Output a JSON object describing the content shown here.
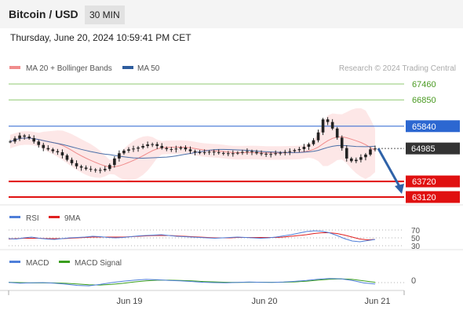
{
  "header": {
    "title": "Bitcoin / USD",
    "interval": "30 MIN"
  },
  "datetime": "Thursday, June 20, 2024 10:59:41 PM CET",
  "legend": {
    "main": [
      {
        "label": "MA 20 + Bollinger Bands",
        "color": "#f08c8c"
      },
      {
        "label": "MA 50",
        "color": "#2e5d9e"
      }
    ],
    "rsi": [
      {
        "label": "RSI",
        "color": "#4f7fd9"
      },
      {
        "label": "9MA",
        "color": "#e02020"
      }
    ],
    "macd": [
      {
        "label": "MACD",
        "color": "#4f7fd9"
      },
      {
        "label": "MACD Signal",
        "color": "#3a9e1e"
      }
    ]
  },
  "credit": "Research © 2024 Trading Central",
  "chart_data": {
    "type": "candlestick",
    "x_ticks": [
      "Jun 19",
      "Jun 20",
      "Jun 21"
    ],
    "levels": [
      {
        "value": 67460,
        "label": "67460",
        "style": "resistance",
        "color": "#8fc971"
      },
      {
        "value": 66850,
        "label": "66850",
        "style": "resistance",
        "color": "#8fc971"
      },
      {
        "value": 65840,
        "label": "65840",
        "style": "pivot",
        "color": "#2c67d1"
      },
      {
        "value": 64985,
        "label": "64985",
        "style": "last",
        "color": "#333333"
      },
      {
        "value": 63720,
        "label": "63720",
        "style": "support",
        "color": "#e01010"
      },
      {
        "value": 63120,
        "label": "63120",
        "style": "support",
        "color": "#e01010"
      }
    ],
    "price": [
      65250,
      65370,
      65480,
      65440,
      65380,
      65250,
      65120,
      65000,
      64950,
      64880,
      64840,
      64720,
      64550,
      64420,
      64300,
      64250,
      64200,
      64170,
      64160,
      64150,
      64200,
      64350,
      64600,
      64800,
      64900,
      64950,
      64980,
      65020,
      65080,
      65140,
      65150,
      65080,
      65000,
      64960,
      64950,
      64980,
      65020,
      64950,
      64880,
      64840,
      64820,
      64840,
      64860,
      64840,
      64810,
      64800,
      64790,
      64800,
      64820,
      64850,
      64880,
      64850,
      64800,
      64780,
      64760,
      64770,
      64800,
      64820,
      64850,
      64880,
      64920,
      64960,
      65050,
      65150,
      65300,
      65600,
      66100,
      66000,
      65750,
      65400,
      65000,
      64600,
      64500,
      64550,
      64650,
      64750,
      64950,
      64985
    ],
    "forecast": [
      64985,
      63120
    ],
    "rsi": {
      "levels": [
        70,
        50,
        30
      ],
      "rsi": [
        48,
        47,
        50,
        52,
        49,
        47,
        46,
        48,
        50,
        51,
        52,
        54,
        53,
        51,
        50,
        51,
        53,
        55,
        56,
        57,
        58,
        56,
        54,
        53,
        52,
        51,
        50,
        49,
        50,
        51,
        52,
        51,
        50,
        49,
        50,
        52,
        55,
        58,
        62,
        66,
        68,
        67,
        63,
        56,
        48,
        42,
        40,
        43,
        46
      ],
      "ma9": [
        47,
        48,
        49,
        49,
        49,
        48,
        48,
        48,
        49,
        50,
        51,
        52,
        52,
        52,
        52,
        52,
        53,
        54,
        55,
        56,
        56,
        56,
        55,
        54,
        53,
        52,
        51,
        50,
        50,
        50,
        51,
        51,
        51,
        51,
        51,
        51,
        52,
        54,
        56,
        58,
        61,
        63,
        63,
        61,
        57,
        52,
        47,
        45,
        46
      ]
    },
    "macd": {
      "zero_label": "0",
      "macd": [
        0.05,
        -0.15,
        -0.05,
        0.0,
        -0.15,
        -0.45,
        -0.8,
        -0.9,
        -0.5,
        0.0,
        0.4,
        0.7,
        0.9,
        0.8,
        0.6,
        0.5,
        0.3,
        0.1,
        0.0,
        -0.05,
        0.05,
        0.15,
        0.1,
        0.05,
        0.15,
        0.35,
        0.6,
        0.95,
        1.15,
        1.1,
        0.6,
        -0.1,
        -0.4
      ],
      "signal": [
        0.1,
        0.0,
        -0.1,
        -0.1,
        -0.1,
        -0.2,
        -0.4,
        -0.6,
        -0.7,
        -0.5,
        -0.2,
        0.2,
        0.5,
        0.7,
        0.7,
        0.6,
        0.5,
        0.3,
        0.2,
        0.1,
        0.05,
        0.1,
        0.12,
        0.1,
        0.12,
        0.2,
        0.4,
        0.7,
        0.95,
        1.05,
        0.9,
        0.5,
        0.1
      ]
    }
  }
}
